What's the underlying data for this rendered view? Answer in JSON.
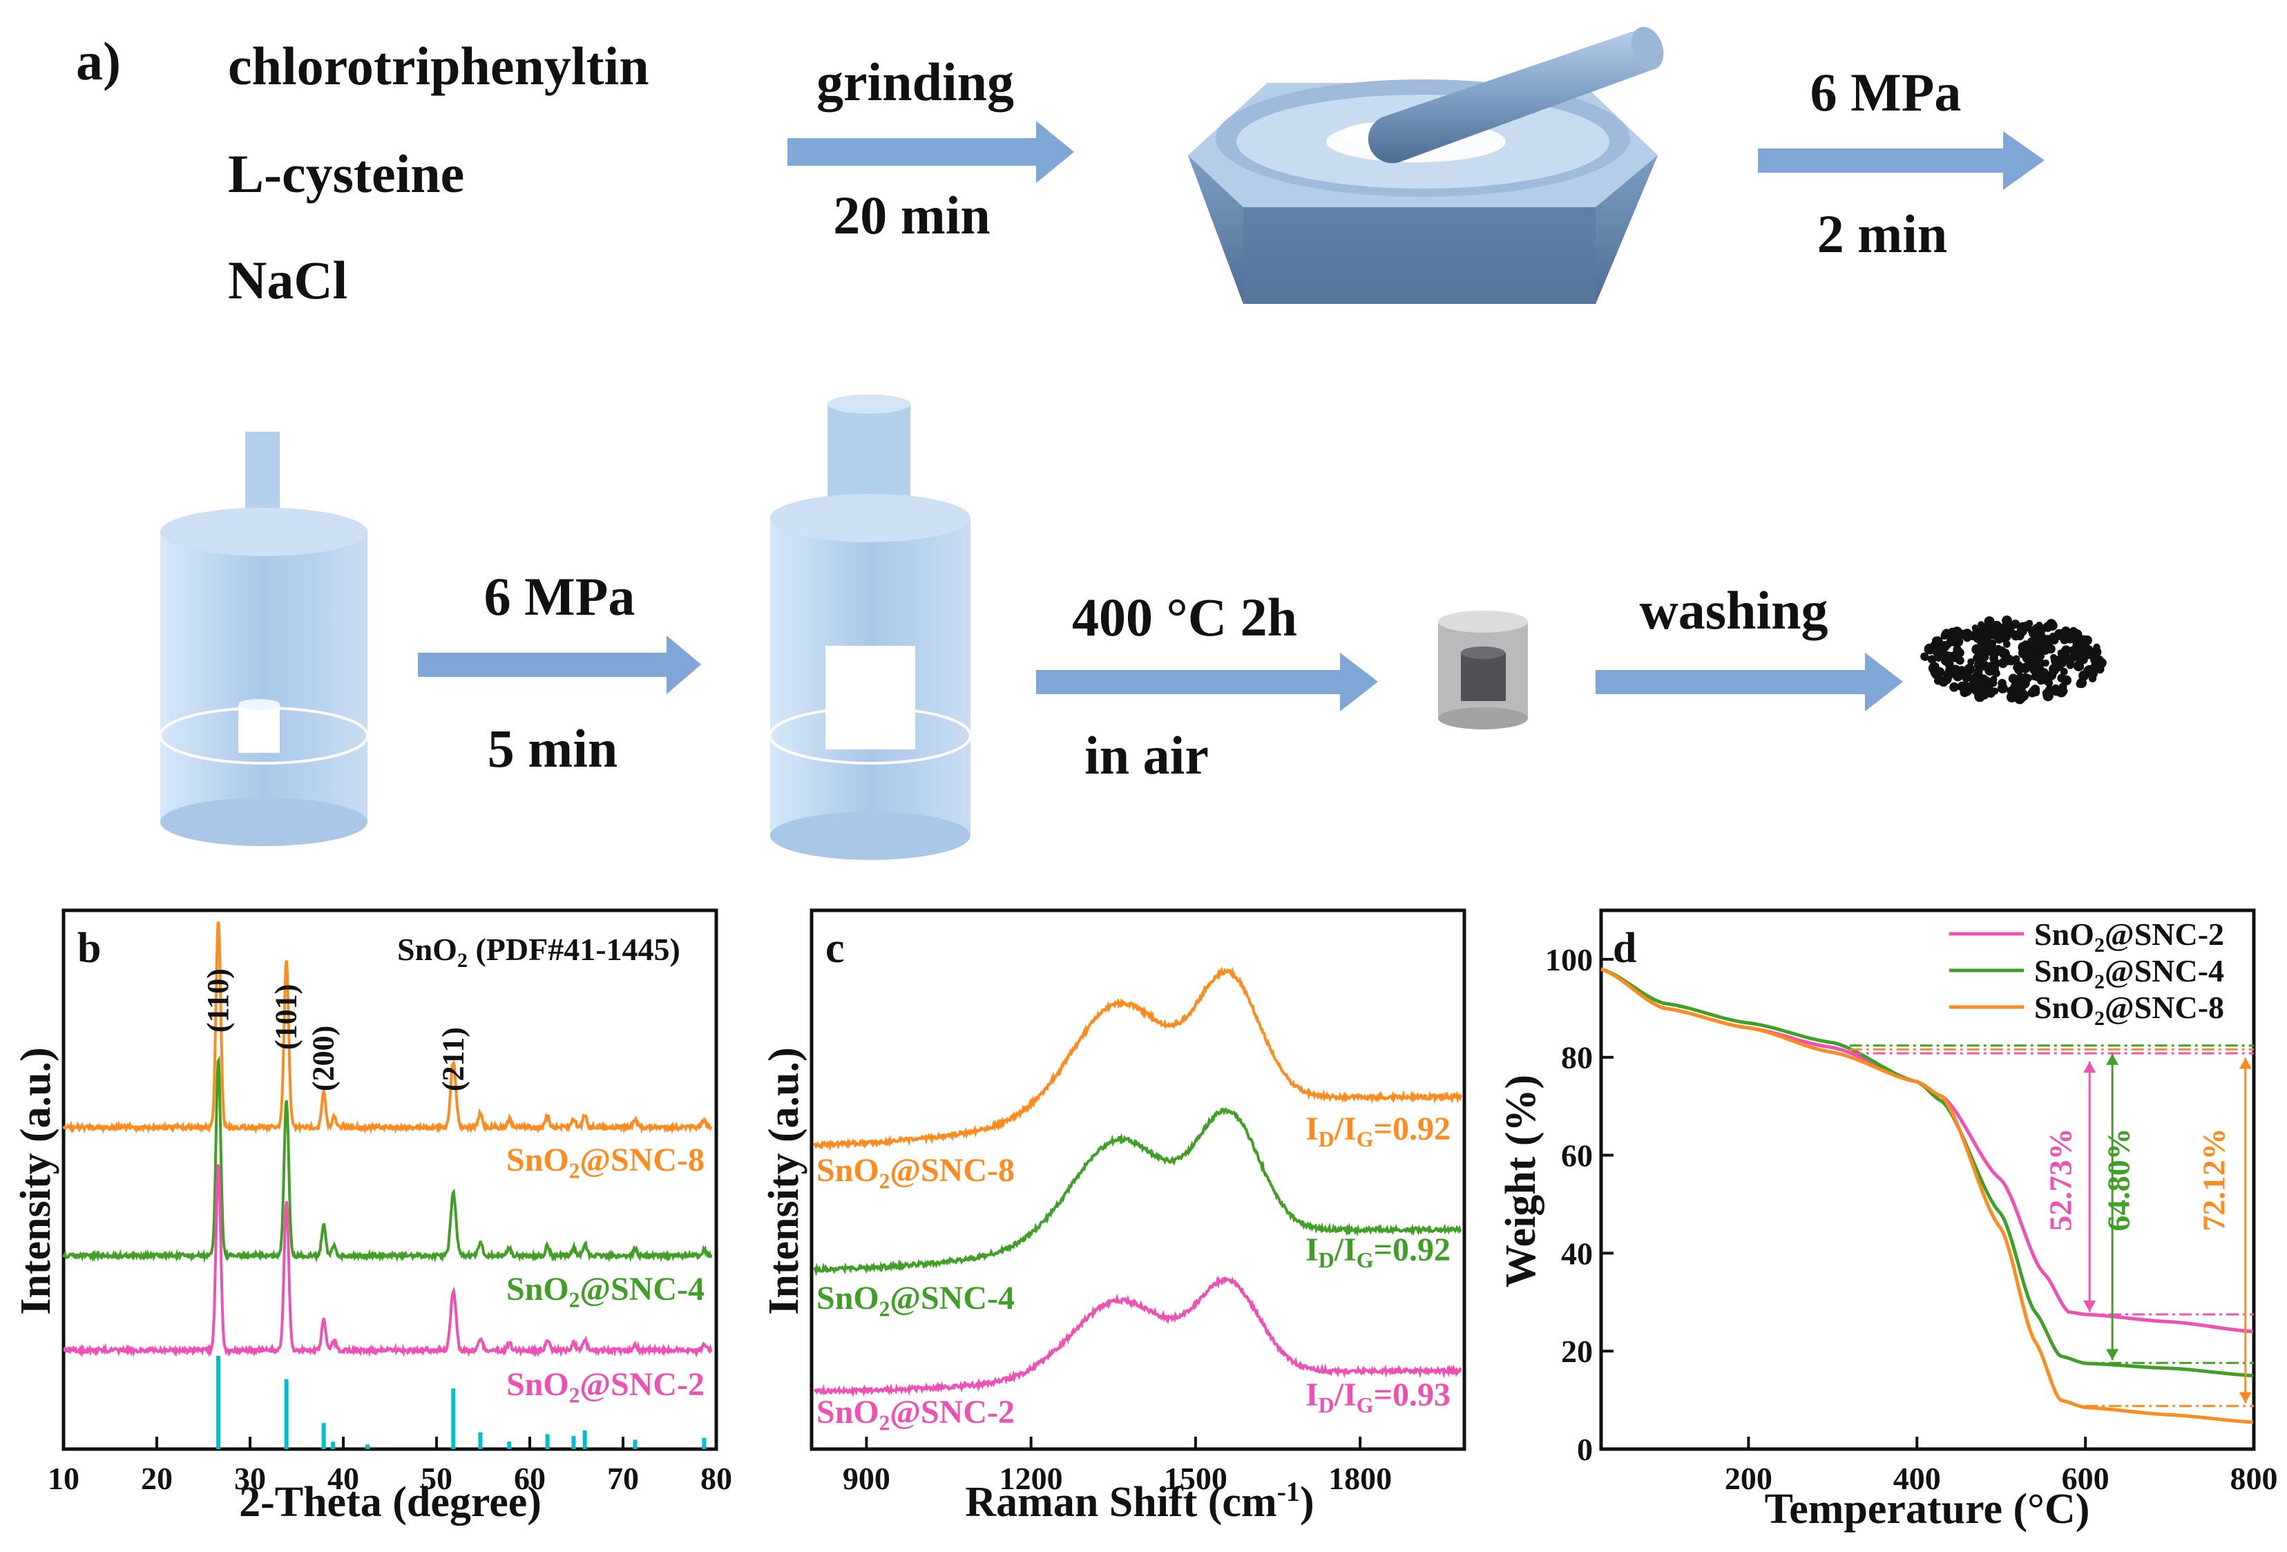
{
  "panel_a": {
    "label": "a)",
    "reagents": [
      "chlorotriphenyltin",
      "L-cysteine",
      "NaCl"
    ],
    "step1": {
      "top": "grinding",
      "bottom": "20 min"
    },
    "step2": {
      "top": "6 MPa",
      "bottom": "2 min"
    },
    "step3": {
      "top": "6 MPa",
      "bottom": "5 min"
    },
    "step4": {
      "top": "400 °C 2h",
      "bottom": "in air"
    },
    "step5": {
      "top": "washing"
    }
  },
  "colors": {
    "snc2": "#f050b4",
    "snc4": "#3fa025",
    "snc8": "#ff8a1e",
    "reference": "#00c0d0",
    "arrow": "#7ea7d8",
    "equipment": "#a8c8e8"
  },
  "chart_data": [
    {
      "type": "line",
      "panel_label": "b",
      "xlabel": "2-Theta (degree)",
      "ylabel": "Intensity (a.u.)",
      "xlim": [
        10,
        80
      ],
      "xticks": [
        "10",
        "20",
        "30",
        "40",
        "50",
        "60",
        "70",
        "80"
      ],
      "reference_label": "SnO₂ (PDF#41-1445)",
      "peak_labels": [
        "(110)",
        "(101)",
        "(200)",
        "(211)"
      ],
      "peak_positions": [
        26.6,
        33.9,
        37.9,
        51.8
      ],
      "reference_peaks": [
        [
          26.6,
          1.0
        ],
        [
          33.9,
          0.75
        ],
        [
          37.9,
          0.28
        ],
        [
          38.9,
          0.08
        ],
        [
          42.6,
          0.05
        ],
        [
          51.8,
          0.65
        ],
        [
          54.7,
          0.18
        ],
        [
          57.8,
          0.08
        ],
        [
          61.9,
          0.16
        ],
        [
          64.7,
          0.14
        ],
        [
          65.9,
          0.2
        ],
        [
          71.3,
          0.1
        ],
        [
          78.7,
          0.12
        ]
      ],
      "series": [
        {
          "name": "SnO₂@SNC-8",
          "color_key": "snc8"
        },
        {
          "name": "SnO₂@SNC-4",
          "color_key": "snc4"
        },
        {
          "name": "SnO₂@SNC-2",
          "color_key": "snc2"
        }
      ]
    },
    {
      "type": "line",
      "panel_label": "c",
      "xlabel": "Raman Shift (cm⁻¹)",
      "ylabel": "Intensity (a.u.)",
      "xlim": [
        800,
        1990
      ],
      "xticks": [
        "900",
        "1200",
        "1500",
        "1800"
      ],
      "series": [
        {
          "name": "SnO₂@SNC-8",
          "ratio": "ID/IG=0.92",
          "color_key": "snc8"
        },
        {
          "name": "SnO₂@SNC-4",
          "ratio": "ID/IG=0.92",
          "color_key": "snc4"
        },
        {
          "name": "SnO₂@SNC-2",
          "ratio": "ID/IG=0.93",
          "color_key": "snc2"
        }
      ]
    },
    {
      "type": "line",
      "panel_label": "d",
      "xlabel": "Temperature (°C)",
      "ylabel": "Weight (%)",
      "xlim": [
        25,
        800
      ],
      "ylim": [
        0,
        110
      ],
      "xticks": [
        "200",
        "400",
        "600",
        "800"
      ],
      "yticks": [
        "0",
        "20",
        "40",
        "60",
        "80",
        "100"
      ],
      "legend_position": "top-right",
      "series": [
        {
          "name": "SnO₂@SNC-2",
          "color_key": "snc2",
          "loss": "52.73%",
          "x": [
            25,
            100,
            200,
            300,
            400,
            430,
            500,
            550,
            580,
            600,
            700,
            800
          ],
          "y": [
            98,
            90,
            86,
            82,
            75,
            72,
            55,
            36,
            28,
            27.5,
            26,
            24
          ]
        },
        {
          "name": "SnO₂@SNC-4",
          "color_key": "snc4",
          "loss": "64.80%",
          "x": [
            25,
            100,
            200,
            300,
            400,
            430,
            500,
            540,
            570,
            600,
            700,
            800
          ],
          "y": [
            98,
            91,
            87,
            83,
            75,
            71,
            48,
            28,
            19,
            17.5,
            16.5,
            15
          ]
        },
        {
          "name": "SnO₂@SNC-8",
          "color_key": "snc8",
          "loss": "72.12%",
          "x": [
            25,
            100,
            200,
            300,
            400,
            430,
            500,
            540,
            570,
            600,
            700,
            800
          ],
          "y": [
            98,
            90,
            86,
            81,
            75,
            72,
            45,
            22,
            10,
            8.5,
            7,
            5.5
          ]
        }
      ]
    }
  ]
}
